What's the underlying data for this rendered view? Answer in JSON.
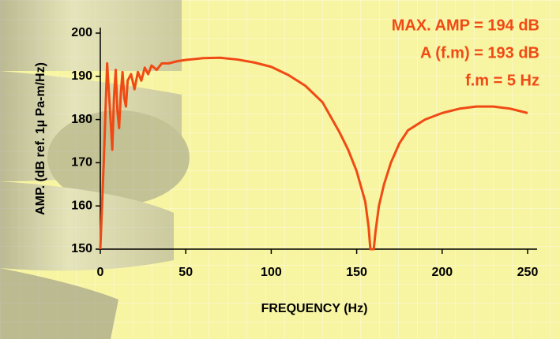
{
  "chart_data": {
    "type": "line",
    "annotations": [
      "MAX. AMP = 194 dB",
      "A (f.m) = 193 dB",
      "f.m = 5 Hz"
    ],
    "x_label": "FREQUENCY (Hz)",
    "y_label": "AMP. (dB ref. 1µ Pa-m/Hz)",
    "x": [
      0,
      2,
      4,
      6,
      7,
      8,
      9,
      10,
      11,
      12,
      13,
      14,
      15,
      16,
      18,
      20,
      22,
      24,
      26,
      28,
      30,
      33,
      36,
      40,
      45,
      50,
      60,
      70,
      80,
      90,
      100,
      110,
      120,
      130,
      140,
      145,
      150,
      155,
      157,
      158,
      160,
      161,
      163,
      166,
      170,
      175,
      180,
      190,
      200,
      210,
      220,
      230,
      240,
      250
    ],
    "series": [
      {
        "color": "#f04a14",
        "values": [
          150,
          170,
          193,
          180,
          173,
          185,
          191.5,
          182,
          178,
          186,
          191,
          185,
          183,
          189,
          190.5,
          187,
          191,
          189,
          192,
          190.5,
          192.5,
          191.5,
          193,
          193,
          193.5,
          193.8,
          194.2,
          194.3,
          193.9,
          193.2,
          192.2,
          190.3,
          187.8,
          184,
          177,
          173,
          168,
          161,
          155,
          150,
          150,
          154,
          160,
          165,
          170,
          174.5,
          177.5,
          180,
          181.5,
          182.5,
          183,
          183,
          182.5,
          181.5
        ]
      }
    ],
    "xlim": [
      0,
      250
    ],
    "xticks": [
      0,
      50,
      100,
      150,
      200,
      250
    ],
    "ylim": [
      150,
      200
    ],
    "yticks": [
      150,
      160,
      170,
      180,
      190,
      200
    ]
  }
}
